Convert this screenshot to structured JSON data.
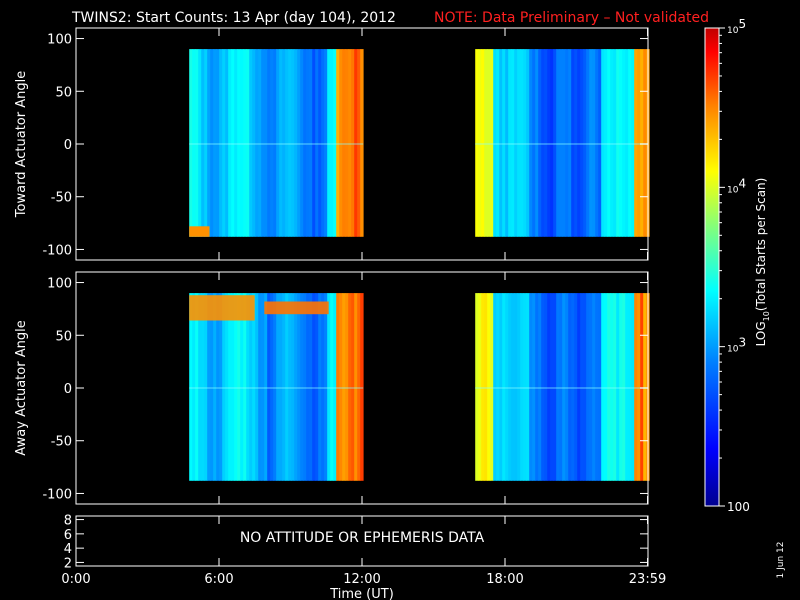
{
  "title": {
    "main": "TWINS2: Start Counts: 13 Apr (day 104), 2012",
    "note": "NOTE: Data Preliminary – Not validated",
    "note_color": "#ff2020"
  },
  "chart_data": [
    {
      "type": "heatmap",
      "ylabel": "Toward Actuator Angle",
      "ylim": [
        -110,
        110
      ],
      "yticks": [
        100,
        50,
        0,
        -50,
        -100
      ],
      "xlim_hours": [
        0,
        24
      ],
      "data_blocks_hours": [
        [
          4.75,
          12.05
        ],
        [
          16.75,
          24.0
        ]
      ],
      "angle_range": [
        -88,
        90
      ],
      "grid": false
    },
    {
      "type": "heatmap",
      "ylabel": "Away Actuator Angle",
      "ylim": [
        -110,
        110
      ],
      "yticks": [
        100,
        50,
        0,
        -50,
        -100
      ],
      "xlim_hours": [
        0,
        24
      ],
      "data_blocks_hours": [
        [
          4.75,
          12.05
        ],
        [
          16.75,
          24.0
        ]
      ],
      "angle_range": [
        -88,
        90
      ],
      "grid": false
    },
    {
      "type": "line",
      "ylim": [
        1.5,
        8.5
      ],
      "yticks": [
        8,
        6,
        4,
        2
      ],
      "annotation": "NO ATTITUDE OR EPHEMERIS DATA"
    }
  ],
  "x_axis": {
    "tick_labels": [
      "0:00",
      "6:00",
      "12:00",
      "18:00",
      "23:59"
    ],
    "tick_hours": [
      0,
      6,
      12,
      18,
      23.98
    ],
    "label": "Time (UT)"
  },
  "colorbar": {
    "label": "LOG10(Total Starts per Scan)",
    "label_main": "LOG",
    "label_sub": "10",
    "label_rest": "(Total Starts per Scan)",
    "scale": "log",
    "range": [
      100,
      100000
    ],
    "tick_labels": [
      "100",
      "10^3",
      "10^4",
      "10^5"
    ],
    "colors": [
      "#00008f",
      "#0000ff",
      "#007fff",
      "#00ffff",
      "#7fff7f",
      "#ffff00",
      "#ff7f00",
      "#ff0000",
      "#b00000"
    ]
  },
  "footer_date": "1 Jun 12"
}
